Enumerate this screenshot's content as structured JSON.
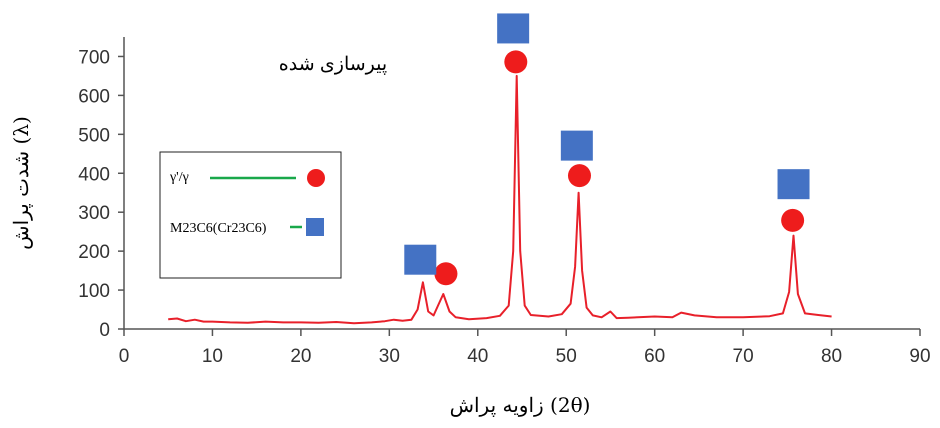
{
  "chart_data": {
    "type": "line",
    "title": "",
    "annotation": "پیرسازی شده",
    "xlabel": "زاویه پراش (2θ)",
    "ylabel": "شدت پراش (λ)",
    "xlim": [
      0,
      90
    ],
    "ylim": [
      0,
      750
    ],
    "x_ticks": [
      "0",
      "10",
      "20",
      "30",
      "40",
      "50",
      "60",
      "70",
      "80",
      "90"
    ],
    "y_ticks": [
      "0",
      "100",
      "200",
      "300",
      "400",
      "500",
      "600",
      "700"
    ],
    "grid": false,
    "legend_position": "left-middle",
    "colors": {
      "line": "#e8202a",
      "circle": "#ee1c1c",
      "square": "#4472c4",
      "legend_line": "#19a84a"
    },
    "series": [
      {
        "x": [
          5,
          6,
          7,
          8,
          9,
          10,
          12,
          14,
          16,
          18,
          20,
          22,
          24,
          26,
          28,
          29.5,
          30.5,
          31.5,
          32.5,
          33.2,
          33.8,
          34.4,
          35,
          35.5,
          36.1,
          36.8,
          37.5,
          39,
          41,
          42.5,
          43.5,
          44,
          44.4,
          44.8,
          45.3,
          46,
          48,
          49.5,
          50.5,
          51,
          51.4,
          51.8,
          52.3,
          53,
          54,
          55,
          55.7,
          57,
          60,
          62,
          63,
          64.5,
          67,
          70,
          73,
          74.5,
          75.2,
          75.7,
          76.2,
          77,
          78.5,
          80
        ],
        "y": [
          25,
          27,
          20,
          24,
          19,
          19,
          17,
          16,
          19,
          17,
          17,
          16,
          18,
          15,
          17,
          20,
          24,
          21,
          24,
          50,
          120,
          45,
          35,
          60,
          90,
          45,
          30,
          25,
          28,
          34,
          60,
          200,
          650,
          200,
          60,
          36,
          32,
          38,
          65,
          160,
          350,
          150,
          55,
          35,
          30,
          45,
          28,
          29,
          32,
          30,
          42,
          35,
          30,
          30,
          33,
          40,
          95,
          240,
          90,
          40,
          36,
          32
        ]
      }
    ],
    "phase_markers": [
      {
        "phase": "γ'/γ",
        "symbol": "circle",
        "x": 36.4,
        "y": 142
      },
      {
        "phase": "γ'/γ",
        "symbol": "circle",
        "x": 44.3,
        "y": 686
      },
      {
        "phase": "γ'/γ",
        "symbol": "circle",
        "x": 51.5,
        "y": 394
      },
      {
        "phase": "γ'/γ",
        "symbol": "circle",
        "x": 75.6,
        "y": 279
      },
      {
        "phase": "M23C6(Cr23C6)",
        "symbol": "square",
        "x": 33.5,
        "y": 178
      },
      {
        "phase": "M23C6(Cr23C6)",
        "symbol": "square",
        "x": 44.0,
        "y": 772
      },
      {
        "phase": "M23C6(Cr23C6)",
        "symbol": "square",
        "x": 51.2,
        "y": 471
      },
      {
        "phase": "M23C6(Cr23C6)",
        "symbol": "square",
        "x": 75.7,
        "y": 372
      }
    ],
    "legend": [
      {
        "label": "γ'/γ",
        "symbol": "circle"
      },
      {
        "label": "M23C6(Cr23C6)",
        "symbol": "square"
      }
    ]
  }
}
